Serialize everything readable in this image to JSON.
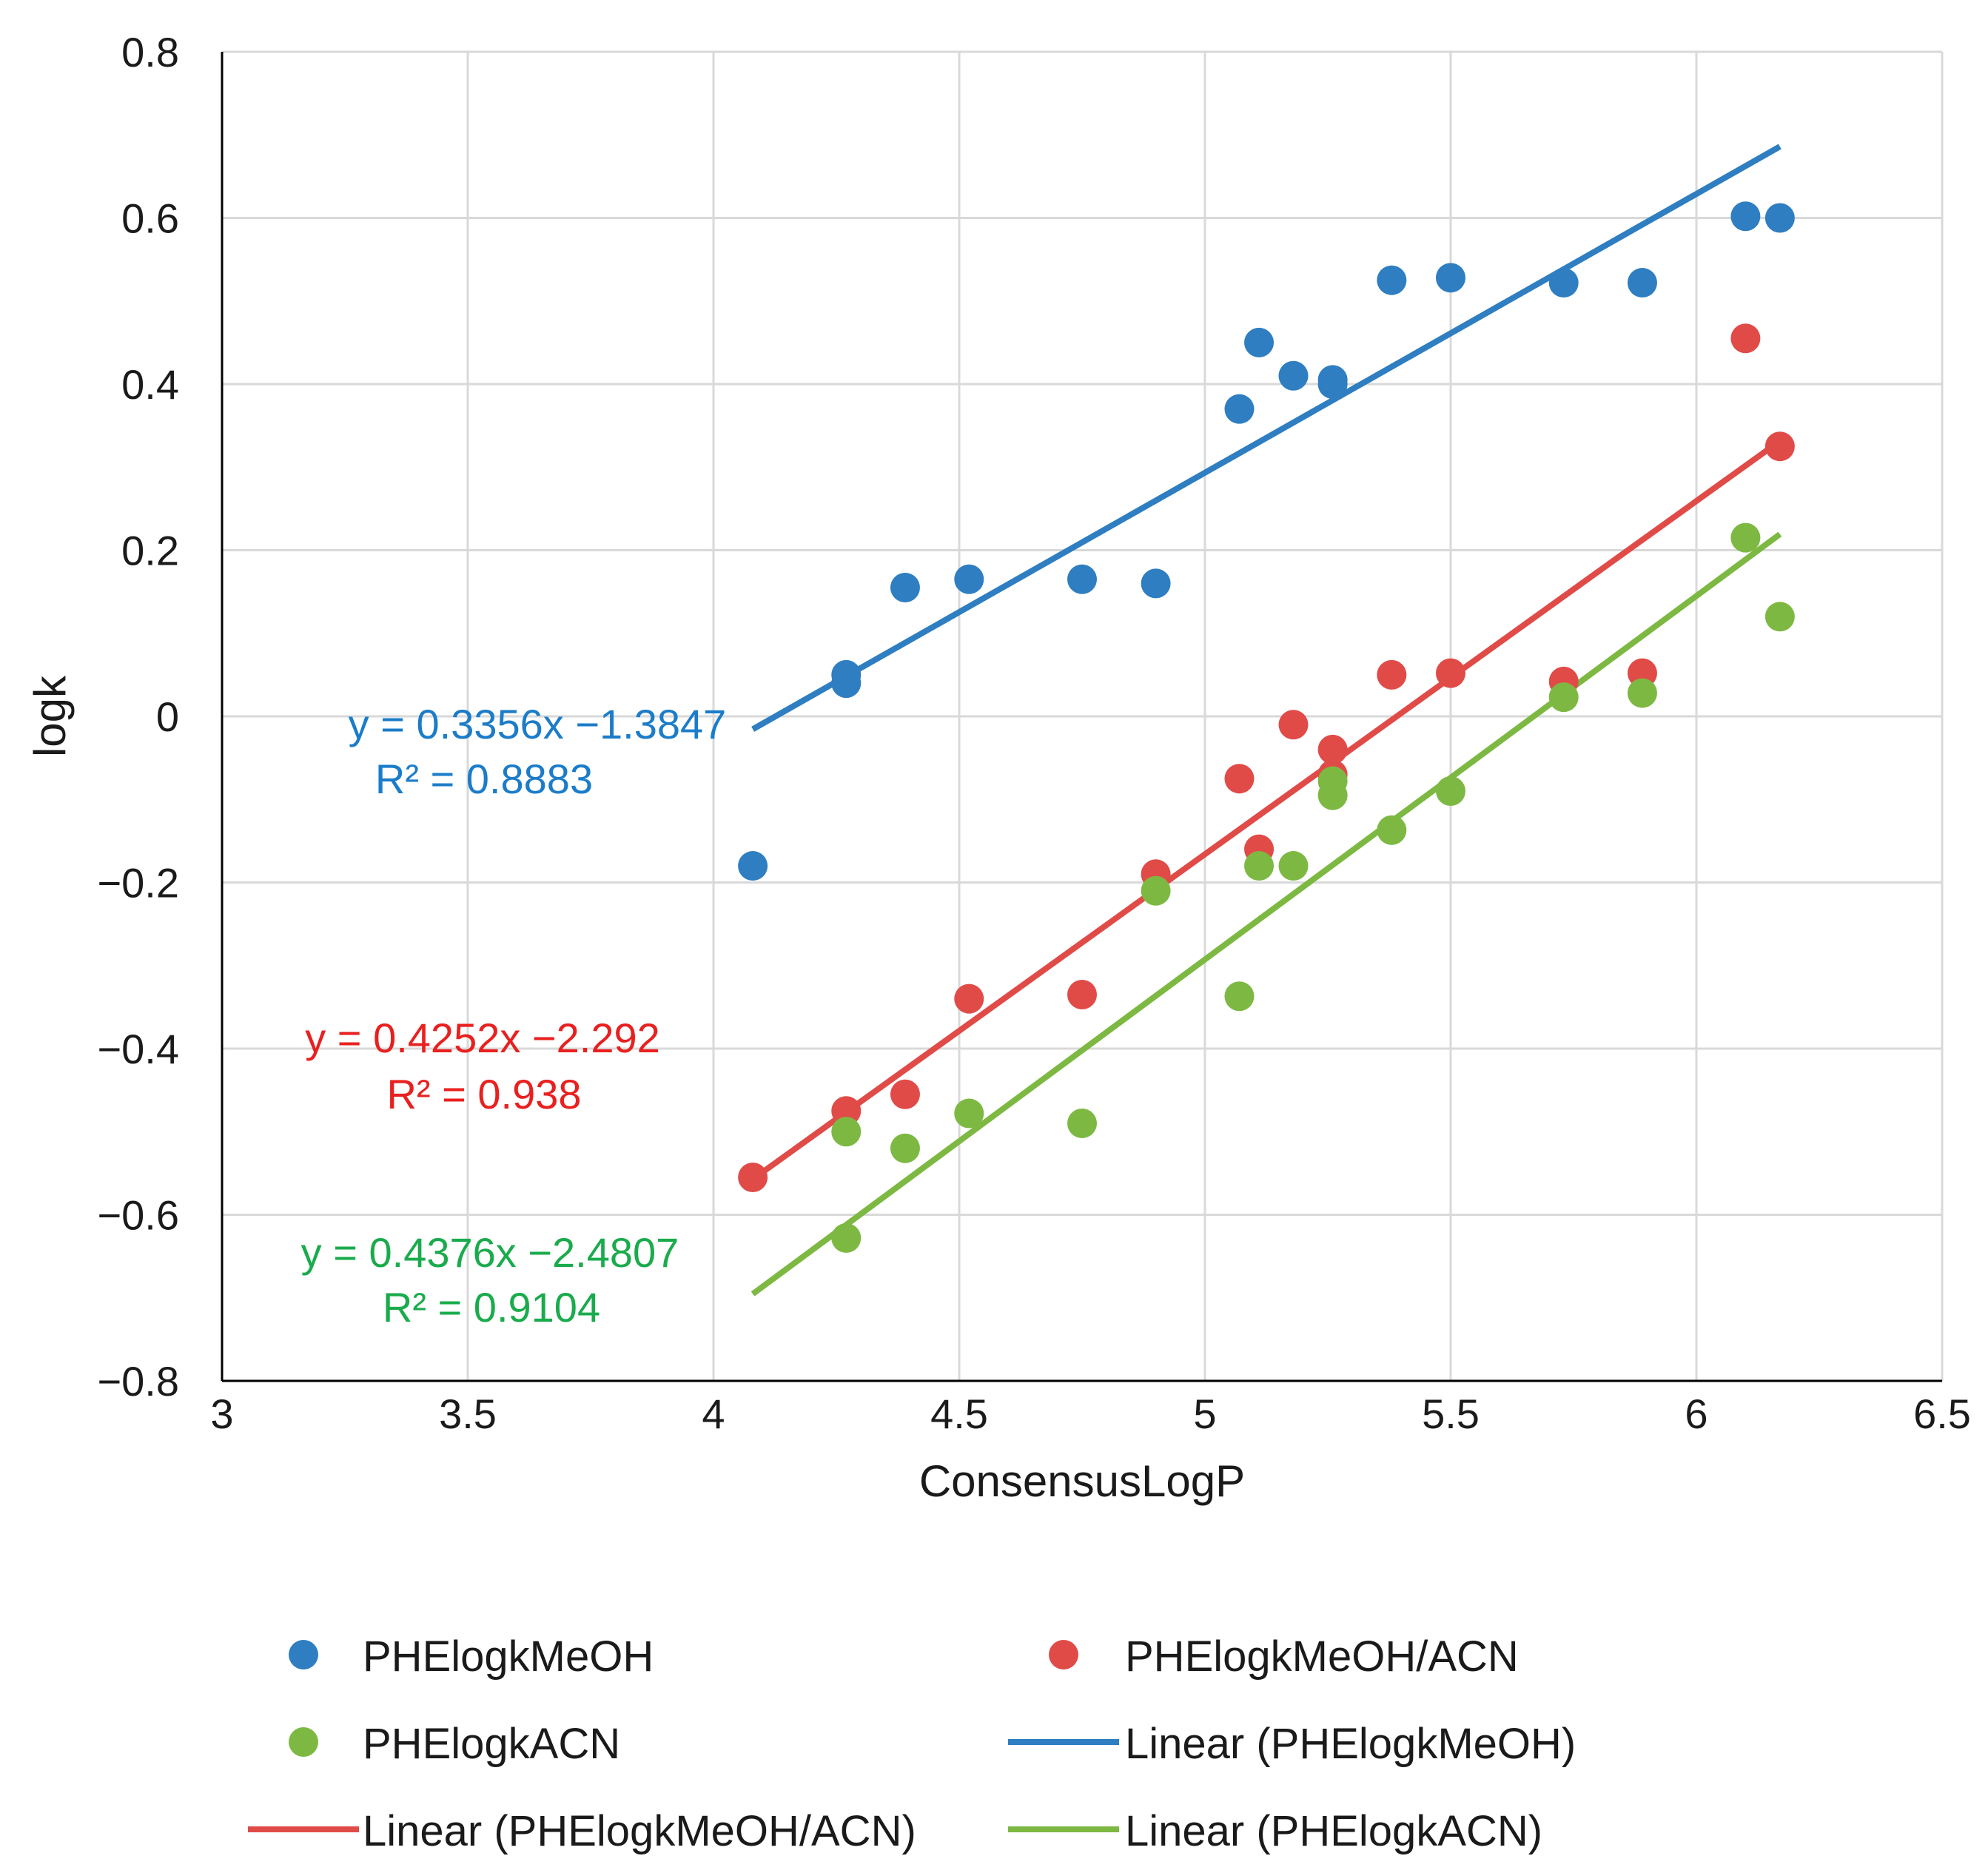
{
  "chart_data": {
    "type": "scatter",
    "title": "",
    "xlabel": "ConsensusLogP",
    "ylabel": "logk",
    "xlim": [
      3,
      6.5
    ],
    "ylim": [
      -0.8,
      0.8
    ],
    "xticks": [
      3,
      3.5,
      4,
      4.5,
      5,
      5.5,
      6,
      6.5
    ],
    "xtick_labels": [
      "3",
      "3.5",
      "4",
      "4.5",
      "5",
      "5.5",
      "6",
      "6.5"
    ],
    "yticks": [
      -0.8,
      -0.6,
      -0.4,
      -0.2,
      0,
      0.2,
      0.4,
      0.6,
      0.8
    ],
    "ytick_labels": [
      "−0.8",
      "−0.6",
      "−0.4",
      "−0.2",
      "0",
      "0.2",
      "0.4",
      "0.6",
      "0.8"
    ],
    "grid": true,
    "legend_position": "bottom",
    "series": [
      {
        "name": "PHElogkMeOH",
        "color": "#2e7ec1",
        "x": [
          4.08,
          4.27,
          4.27,
          4.39,
          4.52,
          4.75,
          4.9,
          5.07,
          5.11,
          5.18,
          5.26,
          5.26,
          5.38,
          5.5,
          5.73,
          5.89,
          6.1,
          6.17
        ],
        "y": [
          -0.18,
          0.04,
          0.05,
          0.155,
          0.165,
          0.165,
          0.16,
          0.37,
          0.45,
          0.41,
          0.4,
          0.405,
          0.525,
          0.528,
          0.522,
          0.522,
          0.602,
          0.6
        ]
      },
      {
        "name": "PHElogkMeOH/ACN",
        "color": "#e04b48",
        "x": [
          4.08,
          4.27,
          4.39,
          4.52,
          4.75,
          4.9,
          5.07,
          5.11,
          5.18,
          5.26,
          5.26,
          5.38,
          5.5,
          5.73,
          5.89,
          6.1,
          6.17
        ],
        "y": [
          -0.555,
          -0.475,
          -0.455,
          -0.34,
          -0.335,
          -0.19,
          -0.075,
          -0.16,
          -0.01,
          -0.04,
          -0.07,
          0.05,
          0.052,
          0.042,
          0.052,
          0.455,
          0.325
        ]
      },
      {
        "name": "PHElogkACN",
        "color": "#7db942",
        "x": [
          4.27,
          4.27,
          4.39,
          4.52,
          4.75,
          4.9,
          5.07,
          5.11,
          5.18,
          5.26,
          5.26,
          5.38,
          5.5,
          5.73,
          5.89,
          6.1,
          6.17
        ],
        "y": [
          -0.628,
          -0.5,
          -0.52,
          -0.478,
          -0.49,
          -0.21,
          -0.337,
          -0.18,
          -0.18,
          -0.095,
          -0.078,
          -0.137,
          -0.09,
          0.023,
          0.028,
          0.215,
          0.12
        ]
      }
    ],
    "trendlines": [
      {
        "name": "Linear (PHElogkMeOH)",
        "color": "#2e7ec1",
        "slope": 0.3356,
        "intercept": -1.3847,
        "x_range": [
          4.08,
          6.17
        ],
        "equation": "y = 0.3356x −1.3847",
        "r2": "R² = 0.8883",
        "label_color": "#1b7cc9"
      },
      {
        "name": "Linear (PHElogkMeOH/ACN)",
        "color": "#e04b48",
        "slope": 0.4252,
        "intercept": -2.292,
        "x_range": [
          4.08,
          6.17
        ],
        "equation": "y = 0.4252x −2.292",
        "r2": "R² = 0.938",
        "label_color": "#e8201f"
      },
      {
        "name": "Linear (PHElogkACN)",
        "color": "#7db942",
        "slope": 0.4376,
        "intercept": -2.4807,
        "x_range": [
          4.08,
          6.17
        ],
        "equation": "y = 0.4376x −2.4807",
        "r2": "R² = 0.9104",
        "label_color": "#1aab4c"
      }
    ],
    "legend": [
      {
        "label": "PHElogkMeOH",
        "kind": "marker",
        "color": "#2e7ec1"
      },
      {
        "label": "PHElogkMeOH/ACN",
        "kind": "marker",
        "color": "#e04b48"
      },
      {
        "label": "PHElogkACN",
        "kind": "marker",
        "color": "#7db942"
      },
      {
        "label": "Linear (PHElogkMeOH)",
        "kind": "line",
        "color": "#2e7ec1"
      },
      {
        "label": "Linear (PHElogkMeOH/ACN)",
        "kind": "line",
        "color": "#e04b48"
      },
      {
        "label": "Linear (PHElogkACN)",
        "kind": "line",
        "color": "#7db942"
      }
    ]
  }
}
